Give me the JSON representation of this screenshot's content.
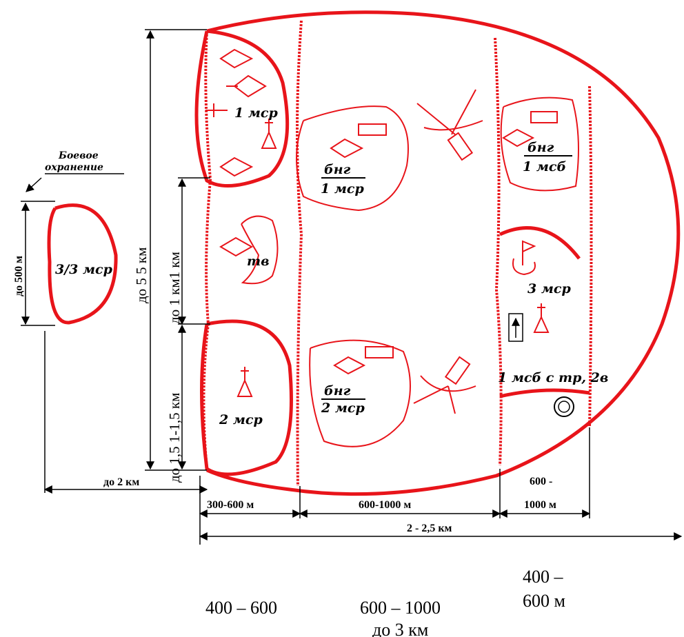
{
  "units": {
    "msr1": "1 мср",
    "tv": "тв",
    "msr2": "2 мср",
    "msr3": "3 мср",
    "msr33": "3/3 мср",
    "msb_tr": "1 мсб с тр, 2в"
  },
  "groups": {
    "bng1_top": "бнг",
    "bng1_bottom": "1 мср",
    "bng2_top": "бнг",
    "bng2_bottom": "2 мср",
    "bng3_top": "бнг",
    "bng3_bottom": "1 мсб"
  },
  "outpost": {
    "line1": "Боевое",
    "line2": "охранение"
  },
  "dimensions": {
    "do500": "до 500 м",
    "do5km": "до 5  5 км",
    "do1km": "до 1 км1 км",
    "do15": "до 1,5 1-1,5 км",
    "do2km": "до 2 км",
    "w300_600": "300-600 м",
    "w600_1000": "600-1000 м",
    "w600": "600 -",
    "w1000": "1000 м",
    "w2_25": "2 - 2,5 км"
  },
  "bottom_labels": {
    "a": "400 – 600",
    "b": "600 – 1000",
    "c1": "400 –",
    "c2": "600 м",
    "d": "до 3 км"
  }
}
